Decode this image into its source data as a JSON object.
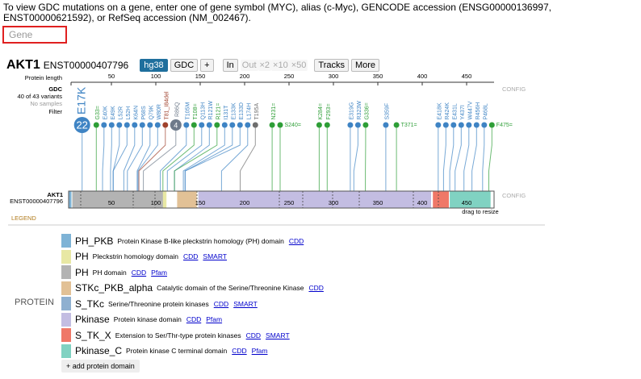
{
  "intro": "To view GDC mutations on a gene, enter one of gene symbol (MYC), alias (c-Myc), GENCODE accession (ENSG00000136997, ENST00000621592), or RefSeq accession (NM_002467).",
  "search": {
    "placeholder": "Gene"
  },
  "header": {
    "gene": "AKT1",
    "transcript": "ENST00000407796",
    "buttons": [
      "hg38",
      "GDC",
      "+",
      "In",
      "Out",
      "×2",
      "×10",
      "×50",
      "Tracks",
      "More"
    ]
  },
  "ruler": {
    "label": "Protein length",
    "ticks": [
      50,
      100,
      150,
      200,
      250,
      300,
      350,
      400,
      450
    ]
  },
  "track": {
    "name": "GDC",
    "variants": "40 of 43 variants",
    "samples": "No samples",
    "filter": "Filter",
    "config": "CONFIG",
    "mutations": [
      {
        "label": "E17K",
        "count": 22,
        "color": "#3f84c4"
      },
      {
        "label": "G33=",
        "color": "#2e9e37"
      },
      {
        "label": "E40K",
        "color": "#3f84c4"
      },
      {
        "label": "E49K",
        "color": "#3f84c4"
      },
      {
        "label": "L52R",
        "color": "#3f84c4"
      },
      {
        "label": "L52H",
        "color": "#3f84c4"
      },
      {
        "label": "K64N",
        "color": "#3f84c4"
      },
      {
        "label": "P68S",
        "color": "#3f84c4"
      },
      {
        "label": "Q79K",
        "color": "#3f84c4"
      },
      {
        "label": "W80R",
        "color": "#3f84c4"
      },
      {
        "label": "T81_I84del",
        "color": "#a0422d"
      },
      {
        "label": "R86Q",
        "count": 4,
        "color": "#6e7a8a"
      },
      {
        "label": "T105M",
        "color": "#3f84c4"
      },
      {
        "label": "T108=",
        "color": "#2e9e37"
      },
      {
        "label": "Q113H",
        "color": "#3f84c4"
      },
      {
        "label": "R121W",
        "color": "#3f84c4"
      },
      {
        "label": "R121=",
        "color": "#2e9e37"
      },
      {
        "label": "I131T",
        "color": "#3f84c4"
      },
      {
        "label": "E133K",
        "color": "#3f84c4"
      },
      {
        "label": "E133D",
        "color": "#3f84c4"
      },
      {
        "label": "L174H",
        "color": "#3f84c4"
      },
      {
        "label": "T195A",
        "color": "#6e6e6e"
      },
      {
        "label": "N231=",
        "color": "#2e9e37"
      },
      {
        "label": "S240=",
        "color": "#2e9e37"
      },
      {
        "label": "K284=",
        "color": "#2e9e37"
      },
      {
        "label": "F293=",
        "color": "#2e9e37"
      },
      {
        "label": "E319G",
        "color": "#3f84c4"
      },
      {
        "label": "R323W",
        "color": "#3f84c4"
      },
      {
        "label": "G336=",
        "color": "#2e9e37"
      },
      {
        "label": "S359F",
        "color": "#3f84c4"
      },
      {
        "label": "T371=",
        "color": "#2e9e37"
      },
      {
        "label": "E418K",
        "color": "#3f84c4"
      },
      {
        "label": "R424K",
        "color": "#3f84c4"
      },
      {
        "label": "E431L",
        "color": "#3f84c4"
      },
      {
        "label": "Y437I",
        "color": "#3f84c4"
      },
      {
        "label": "W447V",
        "color": "#3f84c4"
      },
      {
        "label": "R456H",
        "color": "#3f84c4"
      },
      {
        "label": "P468L",
        "color": "#3f84c4"
      },
      {
        "label": "F475=",
        "color": "#2e9e37"
      }
    ]
  },
  "protein": {
    "gene": "AKT1",
    "transcript": "ENST00000407796",
    "config": "CONFIG",
    "resize": "drag to resize",
    "domains": [
      {
        "name": "PH_PKB",
        "color": "#7eb3d6",
        "description": "Protein Kinase B-like pleckstrin homology (PH) domain",
        "links": [
          "CDD"
        ],
        "range": [
          2,
          5
        ]
      },
      {
        "name": "PH",
        "color": "#e8e8a4",
        "description": "Pleckstrin homology domain",
        "links": [
          "CDD",
          "SMART"
        ],
        "range": [
          6,
          112
        ]
      },
      {
        "name": "PH",
        "color": "#b3b3b3",
        "description": "PH domain",
        "links": [
          "CDD",
          "Pfam"
        ],
        "range": [
          6,
          108
        ]
      },
      {
        "name": "STKc_PKB_alpha",
        "color": "#e2c196",
        "description": "Catalytic domain of the Serine/Threonine Kinase",
        "links": [
          "CDD"
        ],
        "range": [
          124,
          146
        ]
      },
      {
        "name": "S_TKc",
        "color": "#8fb0d0",
        "description": "Serine/Threonine protein kinases",
        "links": [
          "CDD",
          "SMART"
        ],
        "range": [
          148,
          408
        ]
      },
      {
        "name": "Pkinase",
        "color": "#c3bde2",
        "description": "Protein kinase domain",
        "links": [
          "CDD",
          "Pfam"
        ],
        "range": [
          148,
          410
        ]
      },
      {
        "name": "S_TK_X",
        "color": "#ef7868",
        "description": "Extension to Ser/Thr-type protein kinases",
        "links": [
          "CDD",
          "SMART"
        ],
        "range": [
          412,
          430
        ]
      },
      {
        "name": "Pkinase_C",
        "color": "#80d2c2",
        "description": "Protein kinase C terminal domain",
        "links": [
          "CDD",
          "Pfam"
        ],
        "range": [
          431,
          477
        ]
      }
    ]
  },
  "legend": {
    "title": "LEGEND",
    "section": "PROTEIN",
    "add": "+ add protein domain"
  }
}
